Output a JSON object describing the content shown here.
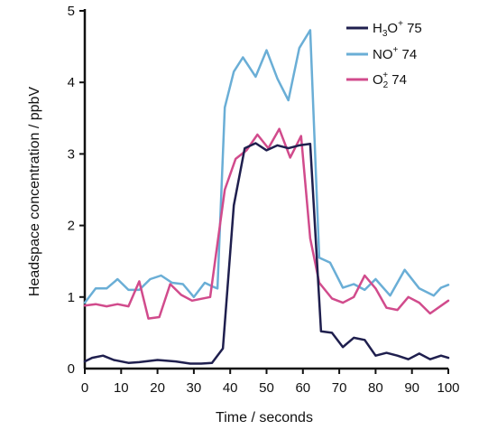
{
  "chart_data": {
    "type": "line",
    "xlabel": "Time / seconds",
    "ylabel": "Headspace concentration / ppbV",
    "xlim": [
      0,
      100
    ],
    "ylim": [
      0,
      5
    ],
    "x_ticks": [
      0,
      10,
      20,
      30,
      40,
      50,
      60,
      70,
      80,
      90,
      100
    ],
    "y_ticks": [
      0,
      1,
      2,
      3,
      4,
      5
    ],
    "grid": false,
    "legend_position": "top-right",
    "series": [
      {
        "name": "H3O+ 75",
        "legend_parts": [
          "H",
          "3",
          "O",
          "+",
          " 75"
        ],
        "color": "#1f1f4e",
        "x": [
          0,
          2,
          5,
          8,
          12,
          15,
          20,
          25,
          29,
          32,
          35,
          38,
          41,
          44,
          47,
          50,
          53,
          56,
          59,
          62,
          65,
          68,
          71,
          74,
          77,
          80,
          83,
          86,
          89,
          92,
          95,
          98,
          100
        ],
        "y": [
          0.1,
          0.15,
          0.18,
          0.12,
          0.08,
          0.09,
          0.12,
          0.1,
          0.07,
          0.07,
          0.08,
          0.28,
          2.28,
          3.08,
          3.15,
          3.05,
          3.12,
          3.08,
          3.12,
          3.14,
          0.52,
          0.5,
          0.3,
          0.43,
          0.4,
          0.18,
          0.22,
          0.18,
          0.13,
          0.21,
          0.13,
          0.18,
          0.15
        ]
      },
      {
        "name": "NO+ 74",
        "legend_parts": [
          "NO",
          "+",
          " 74",
          "",
          ""
        ],
        "color": "#6aaed6",
        "x": [
          0,
          3,
          6,
          9,
          12,
          15,
          18,
          21,
          24,
          27,
          30,
          33,
          35,
          36.5,
          38.5,
          41,
          43.5,
          47,
          50,
          53,
          56,
          59,
          62,
          64.5,
          67.5,
          71,
          74,
          77,
          80,
          84,
          88,
          92,
          96,
          98,
          100
        ],
        "y": [
          0.92,
          1.12,
          1.12,
          1.25,
          1.1,
          1.1,
          1.25,
          1.3,
          1.2,
          1.18,
          1.0,
          1.2,
          1.15,
          1.12,
          3.65,
          4.15,
          4.35,
          4.08,
          4.45,
          4.05,
          3.75,
          4.48,
          4.73,
          1.55,
          1.48,
          1.13,
          1.18,
          1.1,
          1.25,
          1.02,
          1.38,
          1.12,
          1.02,
          1.13,
          1.17
        ]
      },
      {
        "name": "O2+ 74",
        "legend_parts": [
          "O",
          "2",
          "+",
          " 74",
          ""
        ],
        "color": "#d14b8c",
        "x": [
          0,
          3,
          6,
          9,
          12,
          15,
          17.5,
          20.5,
          23.5,
          26.5,
          29.5,
          34.5,
          38.5,
          41.5,
          44.5,
          47.5,
          50.5,
          53.5,
          56.5,
          59.5,
          62,
          64.5,
          68,
          71,
          74,
          77,
          80,
          83,
          86,
          89,
          92,
          95,
          100
        ],
        "y": [
          0.88,
          0.9,
          0.87,
          0.9,
          0.87,
          1.22,
          0.7,
          0.72,
          1.18,
          1.03,
          0.95,
          1.0,
          2.5,
          2.93,
          3.05,
          3.27,
          3.08,
          3.35,
          2.95,
          3.25,
          1.82,
          1.2,
          0.98,
          0.92,
          1.0,
          1.3,
          1.12,
          0.85,
          0.82,
          1.0,
          0.92,
          0.77,
          0.95
        ]
      }
    ]
  }
}
